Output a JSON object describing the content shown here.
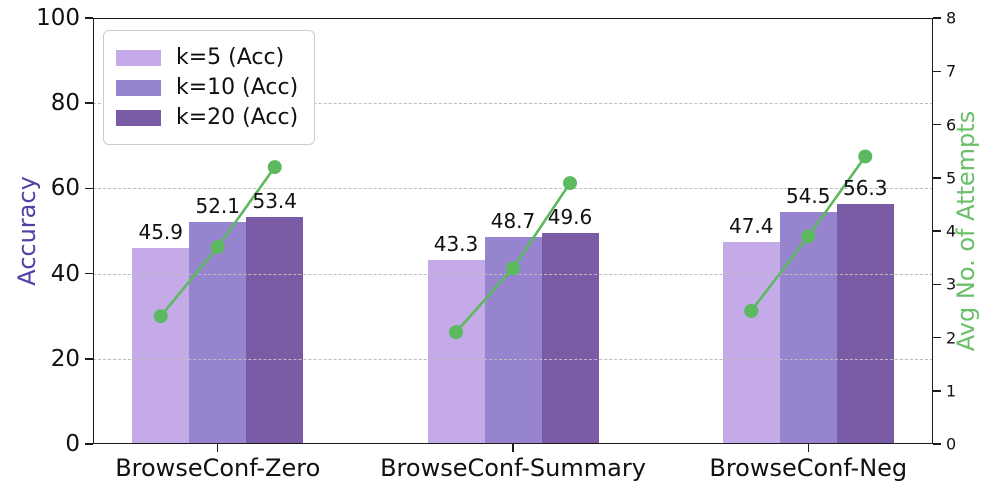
{
  "chart_data": {
    "type": "bar",
    "categories": [
      "BrowseConf-Zero",
      "BrowseConf-Summary",
      "BrowseConf-Neg"
    ],
    "series": [
      {
        "name": "k=5 (Acc)",
        "axis": "left",
        "color": "#c4aae6",
        "values": [
          45.9,
          43.3,
          47.4
        ]
      },
      {
        "name": "k=10 (Acc)",
        "axis": "left",
        "color": "#9684cf",
        "values": [
          52.1,
          48.7,
          54.5
        ]
      },
      {
        "name": "k=20 (Acc)",
        "axis": "left",
        "color": "#7a5ca6",
        "values": [
          53.4,
          49.6,
          56.3
        ]
      }
    ],
    "line_series": {
      "name": "Avg No. of Attempts",
      "axis": "right",
      "color": "#5cb95f",
      "values_per_group": [
        [
          2.4,
          3.7,
          5.2
        ],
        [
          2.1,
          3.3,
          4.9
        ],
        [
          2.5,
          3.9,
          5.4
        ]
      ]
    },
    "axes": {
      "left": {
        "label": "Accuracy",
        "color": "#4f42a5",
        "min": 0,
        "max": 100,
        "ticks": [
          0,
          20,
          40,
          60,
          80,
          100
        ]
      },
      "right": {
        "label": "Avg No. of Attempts",
        "color": "#6abf69",
        "min": 0,
        "max": 8,
        "ticks": [
          0,
          1,
          2,
          3,
          4,
          5,
          6,
          7,
          8
        ]
      }
    },
    "grid": {
      "show": true,
      "values": [
        20,
        40,
        60,
        80
      ],
      "style": "dashed",
      "color": "#bdbdbd"
    },
    "legend": {
      "position": "upper-left",
      "entries": [
        "k=5 (Acc)",
        "k=10 (Acc)",
        "k=20 (Acc)"
      ]
    },
    "bar_value_labels": [
      [
        "45.9",
        "52.1",
        "53.4"
      ],
      [
        "43.3",
        "48.7",
        "49.6"
      ],
      [
        "47.4",
        "54.5",
        "56.3"
      ]
    ]
  }
}
